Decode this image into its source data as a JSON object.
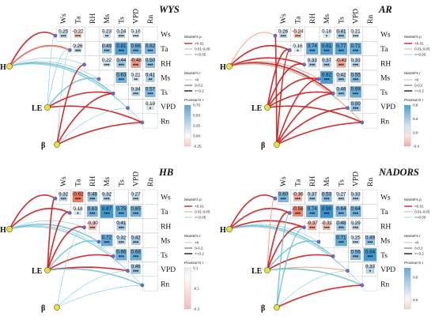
{
  "chart_data": [
    {
      "type": "heatmap",
      "title": "WYS",
      "variables": [
        "Ws",
        "Ta",
        "RH",
        "Ms",
        "Ts",
        "VPD",
        "Rn"
      ],
      "nodes": [
        "H",
        "LE",
        "β"
      ],
      "cells": [
        {
          "row": "Ws",
          "col": "Ws",
          "r": 0.25,
          "sig": "***"
        },
        {
          "row": "Ws",
          "col": "Ta",
          "r": -0.22,
          "sig": "***"
        },
        {
          "row": "Ws",
          "col": "Ms",
          "r": 0.23,
          "sig": "**"
        },
        {
          "row": "Ws",
          "col": "Ts",
          "r": 0.24,
          "sig": "***"
        },
        {
          "row": "Ws",
          "col": "VPD",
          "r": 0.16,
          "sig": "***"
        },
        {
          "row": "Ta",
          "col": "Ta",
          "r": 0.26,
          "sig": "***"
        },
        {
          "row": "Ta",
          "col": "Ms",
          "r": 0.49,
          "sig": "***"
        },
        {
          "row": "Ta",
          "col": "Ts",
          "r": 0.81,
          "sig": "***"
        },
        {
          "row": "Ta",
          "col": "VPD",
          "r": 0.66,
          "sig": "***"
        },
        {
          "row": "Ta",
          "col": "Rn",
          "r": 0.62,
          "sig": "***"
        },
        {
          "row": "RH",
          "col": "Ms",
          "r": 0.22,
          "sig": "***"
        },
        {
          "row": "RH",
          "col": "Ts",
          "r": 0.44,
          "sig": "***"
        },
        {
          "row": "RH",
          "col": "VPD",
          "r": -0.48,
          "sig": "***"
        },
        {
          "row": "RH",
          "col": "Rn",
          "r": 0.5,
          "sig": "***"
        },
        {
          "row": "Ms",
          "col": "Ts",
          "r": 0.63,
          "sig": "***"
        },
        {
          "row": "Ms",
          "col": "VPD",
          "r": 0.21,
          "sig": "**"
        },
        {
          "row": "Ms",
          "col": "Rn",
          "r": 0.41,
          "sig": "**"
        },
        {
          "row": "Ts",
          "col": "VPD",
          "r": 0.34,
          "sig": "***"
        },
        {
          "row": "Ts",
          "col": "Rn",
          "r": 0.57,
          "sig": "***"
        },
        {
          "row": "VPD",
          "col": "Rn",
          "r": 0.19,
          "sig": "*"
        }
      ],
      "colorbar": {
        "ticks": [
          "0.75",
          "0.50",
          "0.25",
          "0.00",
          "-0.25"
        ],
        "min": -0.25,
        "max": 0.75
      }
    },
    {
      "type": "heatmap",
      "title": "AR",
      "variables": [
        "Ws",
        "Ta",
        "RH",
        "Ms",
        "Ts",
        "VPD",
        "Rn"
      ],
      "nodes": [
        "H",
        "LE",
        "β"
      ],
      "cells": [
        {
          "row": "Ws",
          "col": "Ws",
          "r": 0.26,
          "sig": "***"
        },
        {
          "row": "Ws",
          "col": "Ta",
          "r": -0.24,
          "sig": "***"
        },
        {
          "row": "Ws",
          "col": "Ms",
          "r": 0.16,
          "sig": "*"
        },
        {
          "row": "Ws",
          "col": "Ts",
          "r": 0.41,
          "sig": "***"
        },
        {
          "row": "Ws",
          "col": "VPD",
          "r": 0.21,
          "sig": "***"
        },
        {
          "row": "Ta",
          "col": "Ta",
          "r": 0.16,
          "sig": "*"
        },
        {
          "row": "Ta",
          "col": "RH",
          "r": 0.74,
          "sig": "***"
        },
        {
          "row": "Ta",
          "col": "Ms",
          "r": 0.81,
          "sig": "***"
        },
        {
          "row": "Ta",
          "col": "Ts",
          "r": 0.77,
          "sig": "***"
        },
        {
          "row": "Ta",
          "col": "VPD",
          "r": 0.71,
          "sig": "***"
        },
        {
          "row": "RH",
          "col": "RH",
          "r": 0.33,
          "sig": "***"
        },
        {
          "row": "RH",
          "col": "Ms",
          "r": 0.37,
          "sig": "***"
        },
        {
          "row": "RH",
          "col": "Ts",
          "r": -0.43,
          "sig": "***"
        },
        {
          "row": "RH",
          "col": "VPD",
          "r": 0.33,
          "sig": "***"
        },
        {
          "row": "Ms",
          "col": "Ms",
          "r": 0.82,
          "sig": "***"
        },
        {
          "row": "Ms",
          "col": "Ts",
          "r": 0.42,
          "sig": "***"
        },
        {
          "row": "Ms",
          "col": "VPD",
          "r": 0.55,
          "sig": "***"
        },
        {
          "row": "Ts",
          "col": "Ts",
          "r": 0.46,
          "sig": "***"
        },
        {
          "row": "Ts",
          "col": "VPD",
          "r": 0.69,
          "sig": "***"
        },
        {
          "row": "VPD",
          "col": "VPD",
          "r": 0.5,
          "sig": "***"
        }
      ],
      "colorbar": {
        "ticks": [
          "0.8",
          "0.4",
          "0.0",
          "-0.4"
        ],
        "min": -0.4,
        "max": 0.8
      }
    },
    {
      "type": "heatmap",
      "title": "HB",
      "variables": [
        "Ws",
        "Ta",
        "RH",
        "Ms",
        "Ts",
        "VPD",
        "Rn"
      ],
      "nodes": [
        "H",
        "LE",
        "β"
      ],
      "cells": [
        {
          "row": "Ws",
          "col": "Ws",
          "r": 0.32,
          "sig": "***"
        },
        {
          "row": "Ws",
          "col": "Ta",
          "r": -0.62,
          "sig": "***"
        },
        {
          "row": "Ws",
          "col": "RH",
          "r": 0.48,
          "sig": "***"
        },
        {
          "row": "Ws",
          "col": "Ms",
          "r": 0.32,
          "sig": "***"
        },
        {
          "row": "Ws",
          "col": "VPD",
          "r": 0.27,
          "sig": "***"
        },
        {
          "row": "Ta",
          "col": "Ta",
          "r": 0.18,
          "sig": "*"
        },
        {
          "row": "Ta",
          "col": "RH",
          "r": 0.63,
          "sig": "***"
        },
        {
          "row": "Ta",
          "col": "Ms",
          "r": 0.87,
          "sig": "***"
        },
        {
          "row": "Ta",
          "col": "Ts",
          "r": 0.75,
          "sig": "***"
        },
        {
          "row": "Ta",
          "col": "VPD",
          "r": 0.65,
          "sig": "***"
        },
        {
          "row": "RH",
          "col": "RH",
          "r": -0.3,
          "sig": "***"
        },
        {
          "row": "RH",
          "col": "Ts",
          "r": 0.41,
          "sig": "***"
        },
        {
          "row": "Ms",
          "col": "Ms",
          "r": 0.72,
          "sig": "***"
        },
        {
          "row": "Ms",
          "col": "Ts",
          "r": 0.32,
          "sig": "***"
        },
        {
          "row": "Ms",
          "col": "VPD",
          "r": 0.42,
          "sig": "***"
        },
        {
          "row": "Ts",
          "col": "Ts",
          "r": 0.66,
          "sig": "***"
        },
        {
          "row": "Ts",
          "col": "VPD",
          "r": 0.68,
          "sig": "***"
        },
        {
          "row": "VPD",
          "col": "VPD",
          "r": 0.46,
          "sig": "***"
        }
      ],
      "colorbar": {
        "ticks": [
          "0.1",
          "-0.1",
          "-0.3"
        ],
        "min": -0.3,
        "max": 0.1
      }
    },
    {
      "type": "heatmap",
      "title": "NADORS",
      "variables": [
        "Ws",
        "Ta",
        "RH",
        "Ms",
        "Ts",
        "VPD",
        "Rn"
      ],
      "nodes": [
        "H",
        "LE",
        "β"
      ],
      "cells": [
        {
          "row": "Ws",
          "col": "Ws",
          "r": 0.6,
          "sig": "***"
        },
        {
          "row": "Ws",
          "col": "Ta",
          "r": -0.36,
          "sig": "***"
        },
        {
          "row": "Ws",
          "col": "RH",
          "r": 0.37,
          "sig": "***"
        },
        {
          "row": "Ws",
          "col": "Ms",
          "r": 0.53,
          "sig": "***"
        },
        {
          "row": "Ws",
          "col": "Ts",
          "r": 0.27,
          "sig": "***"
        },
        {
          "row": "Ws",
          "col": "VPD",
          "r": 0.33,
          "sig": "***"
        },
        {
          "row": "Ta",
          "col": "Ta",
          "r": -0.58,
          "sig": "***"
        },
        {
          "row": "Ta",
          "col": "RH",
          "r": 0.74,
          "sig": "***"
        },
        {
          "row": "Ta",
          "col": "Ms",
          "r": 0.9,
          "sig": "***"
        },
        {
          "row": "Ta",
          "col": "Ts",
          "r": 0.64,
          "sig": "***"
        },
        {
          "row": "Ta",
          "col": "VPD",
          "r": 0.64,
          "sig": "***"
        },
        {
          "row": "RH",
          "col": "RH",
          "r": -0.37,
          "sig": "***"
        },
        {
          "row": "RH",
          "col": "Ms",
          "r": -0.31,
          "sig": "***"
        },
        {
          "row": "RH",
          "col": "Ts",
          "r": 0.48,
          "sig": "***"
        },
        {
          "row": "RH",
          "col": "VPD",
          "r": 0.29,
          "sig": "***"
        },
        {
          "row": "Ms",
          "col": "Ts",
          "r": 0.71,
          "sig": "***"
        },
        {
          "row": "Ms",
          "col": "VPD",
          "r": 0.25,
          "sig": "***"
        },
        {
          "row": "Ms",
          "col": "Rn",
          "r": 0.49,
          "sig": "***"
        },
        {
          "row": "Ts",
          "col": "VPD",
          "r": 0.56,
          "sig": "***"
        },
        {
          "row": "Ts",
          "col": "Rn",
          "r": 0.84,
          "sig": "***"
        },
        {
          "row": "VPD",
          "col": "Rn",
          "r": 0.33,
          "sig": "*"
        }
      ],
      "colorbar": {
        "ticks": [
          "0.5",
          "0.0"
        ],
        "min": -0.2,
        "max": 0.7
      }
    }
  ],
  "legend": {
    "mantel_p_title": "Mantel's p",
    "mantel_p_items": [
      "<0.01",
      "0.01-0.05",
      ">=0.05"
    ],
    "mantel_r_title": "Mantel's r",
    "mantel_r_items": [
      "<0",
      "0-0.2",
      ">=0.2"
    ],
    "pearson_title": "Pearson's r"
  },
  "colors": {
    "positive": "#4a9fd0",
    "negative": "#ee7b5c",
    "strong_link": "#cc2222",
    "medium_link": "#f39a7a",
    "weak_link": "#6cc2d4",
    "node_fill": "#e8e330",
    "var_node": "#6a6ad6"
  }
}
